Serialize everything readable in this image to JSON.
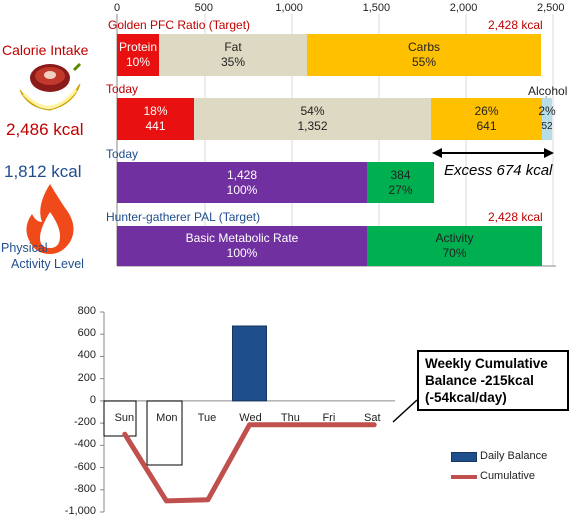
{
  "side": {
    "calorie_intake_label": "Calorie Intake",
    "intake_kcal": "2,486 kcal",
    "burned_kcal": "1,812 kcal",
    "pal_label_line1": "Physical",
    "pal_label_line2": "Activity Level",
    "food_icon": "meat-and-banana-icon",
    "fire_icon": "flame-icon"
  },
  "bars": {
    "top_axis_ticks": [
      "0",
      "500",
      "1,000",
      "1,500",
      "2,000",
      "2,500"
    ],
    "top_axis_max": 2500,
    "target_pfc": {
      "title": "Golden PFC Ratio (Target)",
      "total": "2,428 kcal",
      "segments": [
        {
          "name": "Protein",
          "pct": "10%",
          "kcal": 243,
          "color": "#e81010"
        },
        {
          "name": "Fat",
          "pct": "35%",
          "kcal": 850,
          "color": "#ddd9c3"
        },
        {
          "name": "Carbs",
          "pct": "55%",
          "kcal": 1335,
          "color": "#ffc000"
        }
      ]
    },
    "today_intake": {
      "title": "Today",
      "alcohol_label": "Alcohol",
      "segments": [
        {
          "pct": "18%",
          "value": "441",
          "kcal": 441,
          "color": "#e81010"
        },
        {
          "pct": "54%",
          "value": "1,352",
          "kcal": 1352,
          "color": "#ddd9c3"
        },
        {
          "pct": "26%",
          "value": "641",
          "kcal": 641,
          "color": "#ffc000"
        },
        {
          "pct": "2%",
          "value": "52",
          "kcal": 52,
          "color": "#b7dee8"
        }
      ]
    },
    "today_burn": {
      "title": "Today",
      "excess_label": "Excess 674 kcal",
      "segments": [
        {
          "value": "1,428",
          "pct": "100%",
          "kcal": 1428,
          "color": "#7030a0"
        },
        {
          "value": "384",
          "pct": "27%",
          "kcal": 384,
          "color": "#00b050"
        }
      ]
    },
    "target_pal": {
      "title": "Hunter-gatherer  PAL (Target)",
      "total": "2,428 kcal",
      "segments": [
        {
          "name": "Basic Metabolic Rate",
          "pct": "100%",
          "kcal": 1428,
          "color": "#7030a0"
        },
        {
          "name": "Activity",
          "pct": "70%",
          "kcal": 1000,
          "color": "#00b050"
        }
      ]
    }
  },
  "chart_data": {
    "type": "bar",
    "categories": [
      "Sun",
      "Mon",
      "Tue",
      "Wed",
      "Thu",
      "Fri",
      "Sat"
    ],
    "series": [
      {
        "name": "Daily Balance",
        "type": "bar",
        "values": [
          null,
          null,
          null,
          674,
          null,
          null,
          null
        ]
      },
      {
        "name": "Cumulative",
        "type": "line",
        "values": [
          -300,
          -900,
          -890,
          -215,
          -215,
          -215,
          -215
        ]
      }
    ],
    "ylim": [
      -1000,
      800
    ],
    "yticks": [
      "800",
      "600",
      "400",
      "200",
      "0",
      "-200",
      "-400",
      "-600",
      "-800",
      "-1,000"
    ],
    "legend_position": "bottom-right",
    "colors": {
      "bar": "#1f4e8c",
      "line": "#c0504d"
    },
    "annotation": "Weekly Cumulative Balance -215kcal (-54kcal/day)"
  }
}
